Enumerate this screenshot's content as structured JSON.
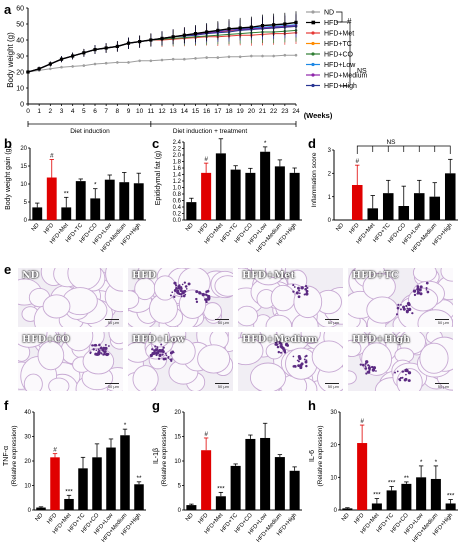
{
  "panels": {
    "a": {
      "letter": "a",
      "ylabel": "Body weight (g)",
      "xlabel": "(Weeks)",
      "x_ticks": [
        "0",
        "1",
        "2",
        "3",
        "4",
        "5",
        "6",
        "7",
        "8",
        "9",
        "10",
        "11",
        "12",
        "13",
        "14",
        "15",
        "16",
        "17",
        "18",
        "19",
        "20",
        "21",
        "22",
        "23",
        "24"
      ],
      "y_ticks": [
        "0",
        "10",
        "20",
        "30",
        "40",
        "50",
        "60"
      ],
      "ylim": [
        0,
        60
      ],
      "legend": [
        "ND",
        "HFD",
        "HFD+Met",
        "HFD+TC",
        "HFD+CO",
        "HFD+Low",
        "HFD+Medium",
        "HFD+High"
      ],
      "colors": [
        "#9e9e9e",
        "#000000",
        "#e53935",
        "#ff8c00",
        "#2e7d32",
        "#1e88e5",
        "#8e24aa",
        "#283593"
      ],
      "sig_hash": "#",
      "sig_ns": "NS",
      "phase1": "Diet induction",
      "phase2": "Diet induction + treatment"
    },
    "b": {
      "letter": "b",
      "ylabel": "Body weight gain (g)",
      "y_ticks": [
        "0",
        "5",
        "10",
        "15",
        "20"
      ],
      "ylim": [
        0,
        20
      ]
    },
    "c": {
      "letter": "c",
      "ylabel": "Epididymal fat (g)",
      "y_ticks": [
        "0.0",
        "0.2",
        "0.4",
        "0.6",
        "0.8",
        "1.0",
        "1.2",
        "1.4",
        "1.6",
        "1.8",
        "2.0",
        "2.2",
        "2.4"
      ],
      "ylim": [
        0,
        2.4
      ]
    },
    "d": {
      "letter": "d",
      "ylabel": "Inflammation score",
      "y_ticks": [
        "0",
        "1",
        "2",
        "3"
      ],
      "ylim": [
        0,
        3
      ],
      "sig_ns": "NS"
    },
    "e": {
      "letter": "e",
      "labels": [
        "ND",
        "HFD",
        "HFD+Met",
        "HFD+TC",
        "HFD+CO",
        "HFD+Low",
        "HFD+Medium",
        "HFD+High"
      ],
      "scale": "50 μm"
    },
    "f": {
      "letter": "f",
      "ylabel": "TNF-α",
      "ylabel2": "(Relative expression)",
      "y_ticks": [
        "0",
        "10",
        "20",
        "30",
        "40"
      ],
      "ylim": [
        0,
        40
      ]
    },
    "g": {
      "letter": "g",
      "ylabel": "IL-1β",
      "ylabel2": "(Relative expression)",
      "y_ticks": [
        "0",
        "5",
        "10",
        "15",
        "20"
      ],
      "ylim": [
        0,
        20
      ]
    },
    "h": {
      "letter": "h",
      "ylabel": "IL-6",
      "ylabel2": "(Relative expression)",
      "y_ticks": [
        "0",
        "10",
        "20",
        "30"
      ],
      "ylim": [
        0,
        30
      ]
    }
  },
  "chart_data": [
    {
      "type": "line",
      "panel": "a",
      "x": [
        0,
        1,
        2,
        3,
        4,
        5,
        6,
        7,
        8,
        9,
        10,
        11,
        12,
        13,
        14,
        15,
        16,
        17,
        18,
        19,
        20,
        21,
        22,
        23,
        24
      ],
      "series": [
        {
          "name": "ND",
          "values": [
            20,
            21,
            22,
            23,
            23.5,
            24,
            25,
            25.5,
            26,
            26,
            27,
            27,
            27.5,
            28,
            28,
            28.5,
            29,
            29,
            29.5,
            29.5,
            30,
            30,
            30,
            30.5,
            30.5
          ]
        },
        {
          "name": "HFD",
          "values": [
            20,
            22,
            25,
            28,
            30,
            32,
            34,
            35,
            36,
            38,
            39,
            40,
            41,
            42,
            43,
            44,
            45,
            46,
            47,
            47.5,
            48,
            49,
            49.5,
            50,
            51
          ]
        },
        {
          "name": "HFD+Met",
          "values": [
            20,
            22,
            25,
            28,
            30,
            32,
            34,
            35,
            36,
            38,
            39,
            40,
            40,
            40.5,
            41,
            41.5,
            42,
            42,
            42.5,
            43,
            43,
            43.5,
            44,
            44,
            44.5
          ]
        },
        {
          "name": "HFD+TC",
          "values": [
            20,
            22,
            25,
            28,
            30,
            32,
            34,
            35,
            36,
            38,
            39,
            40,
            41,
            42,
            43,
            44,
            44.5,
            45,
            45.5,
            46,
            47,
            47,
            47.5,
            48,
            48.5
          ]
        },
        {
          "name": "HFD+CO",
          "values": [
            20,
            22,
            25,
            28,
            30,
            32,
            34,
            35,
            36,
            38,
            39,
            40,
            40.5,
            41,
            41.5,
            42,
            42.5,
            43,
            43.5,
            44,
            44.5,
            45,
            45,
            45.5,
            46
          ]
        },
        {
          "name": "HFD+Low",
          "values": [
            20,
            22,
            25,
            28,
            30,
            32,
            34,
            35,
            36,
            38,
            39,
            40,
            41,
            42,
            43,
            44,
            45,
            45.5,
            46,
            47,
            47.5,
            48,
            48.5,
            49,
            49.5
          ]
        },
        {
          "name": "HFD+Medium",
          "values": [
            20,
            22,
            25,
            28,
            30,
            32,
            34,
            35,
            36,
            38,
            39,
            40,
            41,
            42,
            43,
            43.5,
            44.5,
            45,
            46,
            46.5,
            47,
            47.5,
            48,
            48.5,
            49
          ]
        },
        {
          "name": "HFD+High",
          "values": [
            20,
            22,
            25,
            28,
            30,
            32,
            34,
            35,
            36,
            38,
            39,
            40,
            41,
            42,
            42.5,
            43,
            44,
            44.5,
            45,
            46,
            46.5,
            47,
            47.5,
            48,
            48.5
          ]
        }
      ],
      "xlabel": "(Weeks)",
      "ylabel": "Body weight (g)",
      "ylim": [
        0,
        60
      ]
    },
    {
      "type": "bar",
      "panel": "b",
      "categories": [
        "ND",
        "HFD",
        "HFD+Met",
        "HFD+TC",
        "HFD+CO",
        "HFD+Low",
        "HFD+Medium",
        "HFD+High"
      ],
      "values": [
        3.5,
        11.8,
        3.5,
        10.8,
        6.0,
        11.2,
        10.5,
        10.2
      ],
      "errors": [
        1.2,
        5.0,
        2.8,
        0.6,
        2.7,
        1.3,
        2.7,
        2.8
      ],
      "marks": [
        "",
        "#",
        "**",
        "",
        "*",
        "",
        "",
        ""
      ],
      "ylabel": "Body weight gain (g)",
      "ylim": [
        0,
        20
      ]
    },
    {
      "type": "bar",
      "panel": "c",
      "categories": [
        "ND",
        "HFD",
        "HFD+Met",
        "HFD+TC",
        "HFD+CO",
        "HFD+Low",
        "HFD+Medium",
        "HFD+High"
      ],
      "values": [
        0.55,
        1.45,
        2.05,
        1.55,
        1.45,
        2.1,
        1.65,
        1.45
      ],
      "errors": [
        0.12,
        0.3,
        0.45,
        0.12,
        0.14,
        0.15,
        0.2,
        0.15
      ],
      "marks": [
        "",
        "#",
        "",
        "",
        "",
        "*",
        "",
        ""
      ],
      "ylabel": "Epididymal fat (g)",
      "ylim": [
        0,
        2.4
      ]
    },
    {
      "type": "bar",
      "panel": "d",
      "categories": [
        "ND",
        "HFD",
        "HFD+Met",
        "HFD+TC",
        "HFD+CO",
        "HFD+Low",
        "HFD+Medium",
        "HFD+High"
      ],
      "values": [
        0,
        1.5,
        0.5,
        1.15,
        0.6,
        1.15,
        1.0,
        2.0
      ],
      "errors": [
        0,
        0.85,
        0.55,
        0.55,
        0.85,
        0.55,
        0.6,
        0.6
      ],
      "marks": [
        "",
        "#",
        "",
        "",
        "",
        "",
        "",
        ""
      ],
      "ylabel": "Inflammation score",
      "ylim": [
        0,
        3
      ]
    },
    {
      "type": "bar",
      "panel": "f",
      "categories": [
        "ND",
        "HFD",
        "HFD+Met",
        "HFD+TC",
        "HFD+CO",
        "HFD+Low",
        "HFD+Medium",
        "HFD+High"
      ],
      "values": [
        1,
        21.5,
        4.5,
        17,
        21.5,
        25.5,
        30.5,
        10.5
      ],
      "errors": [
        0.3,
        1.5,
        1.5,
        4.5,
        5.5,
        3.5,
        2.5,
        1.0
      ],
      "marks": [
        "",
        "#",
        "***",
        "",
        "",
        "",
        "*",
        "**"
      ],
      "ylabel": "TNF-α (Relative expression)",
      "ylim": [
        0,
        40
      ]
    },
    {
      "type": "bar",
      "panel": "g",
      "categories": [
        "ND",
        "HFD",
        "HFD+Met",
        "HFD+TC",
        "HFD+CO",
        "HFD+Low",
        "HFD+Medium",
        "HFD+High"
      ],
      "values": [
        1,
        12.2,
        2.8,
        9.0,
        14.5,
        14.7,
        10.8,
        8.0
      ],
      "errors": [
        0.2,
        2.5,
        0.8,
        0.4,
        0.8,
        3.0,
        0.5,
        0.8
      ],
      "marks": [
        "",
        "#",
        "***",
        "",
        "",
        "",
        "",
        ""
      ],
      "ylabel": "IL-1β (Relative expression)",
      "ylim": [
        0,
        20
      ]
    },
    {
      "type": "bar",
      "panel": "h",
      "categories": [
        "ND",
        "HFD",
        "HFD+Met",
        "HFD+TC",
        "HFD+CO",
        "HFD+Low",
        "HFD+Medium",
        "HFD+High"
      ],
      "values": [
        0.5,
        20.5,
        2.0,
        6.0,
        8.0,
        10.0,
        9.5,
        2.0
      ],
      "errors": [
        0.2,
        5.5,
        1.5,
        1.2,
        0.6,
        3.5,
        4.0,
        1.2
      ],
      "marks": [
        "",
        "#",
        "***",
        "***",
        "**",
        "*",
        "*",
        "***"
      ],
      "ylabel": "IL-6 (Relative expression)",
      "ylim": [
        0,
        30
      ]
    }
  ]
}
